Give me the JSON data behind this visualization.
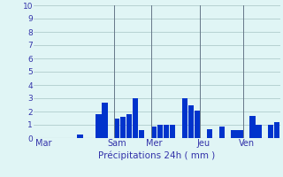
{
  "title": "",
  "xlabel": "Précipitations 24h ( mm )",
  "ylabel": "",
  "background_color": "#e0f5f5",
  "bar_color": "#0033cc",
  "grid_color": "#b0cccc",
  "ylim": [
    0,
    10
  ],
  "yticks": [
    0,
    1,
    2,
    3,
    4,
    5,
    6,
    7,
    8,
    9,
    10
  ],
  "day_labels": [
    "Mar",
    "Sam",
    "Mer",
    "Jeu",
    "Ven"
  ],
  "day_positions": [
    1,
    13,
    19,
    27,
    34
  ],
  "values": [
    0,
    0,
    0,
    0,
    0,
    0,
    0,
    0.3,
    0,
    0,
    1.8,
    2.7,
    0,
    1.5,
    1.6,
    1.8,
    3.0,
    0.6,
    0,
    0.9,
    1.0,
    1.0,
    1.0,
    0,
    3.0,
    2.5,
    2.1,
    0,
    0.7,
    0,
    0.9,
    0,
    0.6,
    0.6,
    0,
    1.7,
    1.0,
    0,
    1.0,
    1.2
  ],
  "n_bars": 40,
  "vline_positions": [
    13,
    19,
    27,
    34
  ],
  "vline_color": "#667788",
  "tick_color": "#3333aa",
  "xlabel_color": "#3333aa",
  "xlabel_fontsize": 7.5,
  "ytick_fontsize": 6.5,
  "xtick_fontsize": 7.0
}
